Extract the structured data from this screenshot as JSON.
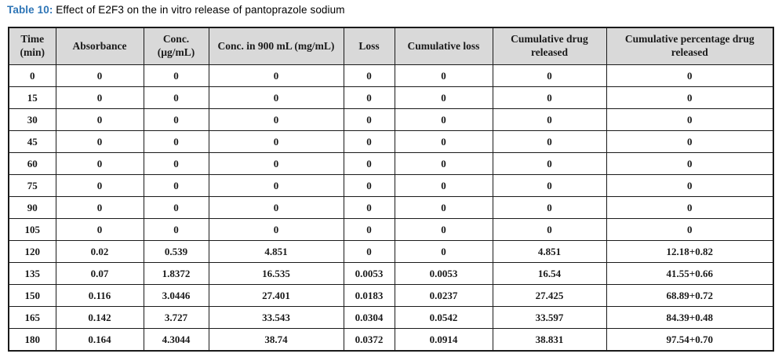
{
  "title": {
    "label": "Table 10:",
    "text": "Effect of E2F3 on the in vitro release of pantoprazole sodium"
  },
  "colors": {
    "caption_label_blue": "#2e75b6",
    "header_background": "#d9d9d9",
    "table_border": "#1a1a1a",
    "text": "#1a1a1a"
  },
  "table": {
    "columns": [
      "Time (min)",
      "Absorbance",
      "Conc. (µg/mL)",
      "Conc. in 900 mL (mg/mL)",
      "Loss",
      "Cumulative loss",
      "Cumulative drug released",
      "Cumulative percentage drug released"
    ],
    "rows": [
      [
        "0",
        "0",
        "0",
        "0",
        "0",
        "0",
        "0",
        "0"
      ],
      [
        "15",
        "0",
        "0",
        "0",
        "0",
        "0",
        "0",
        "0"
      ],
      [
        "30",
        "0",
        "0",
        "0",
        "0",
        "0",
        "0",
        "0"
      ],
      [
        "45",
        "0",
        "0",
        "0",
        "0",
        "0",
        "0",
        "0"
      ],
      [
        "60",
        "0",
        "0",
        "0",
        "0",
        "0",
        "0",
        "0"
      ],
      [
        "75",
        "0",
        "0",
        "0",
        "0",
        "0",
        "0",
        "0"
      ],
      [
        "90",
        "0",
        "0",
        "0",
        "0",
        "0",
        "0",
        "0"
      ],
      [
        "105",
        "0",
        "0",
        "0",
        "0",
        "0",
        "0",
        "0"
      ],
      [
        "120",
        "0.02",
        "0.539",
        "4.851",
        "0",
        "0",
        "4.851",
        "12.18+0.82"
      ],
      [
        "135",
        "0.07",
        "1.8372",
        "16.535",
        "0.0053",
        "0.0053",
        "16.54",
        "41.55+0.66"
      ],
      [
        "150",
        "0.116",
        "3.0446",
        "27.401",
        "0.0183",
        "0.0237",
        "27.425",
        "68.89+0.72"
      ],
      [
        "165",
        "0.142",
        "3.727",
        "33.543",
        "0.0304",
        "0.0542",
        "33.597",
        "84.39+0.48"
      ],
      [
        "180",
        "0.164",
        "4.3044",
        "38.74",
        "0.0372",
        "0.0914",
        "38.831",
        "97.54+0.70"
      ]
    ]
  },
  "chart_data": {
    "type": "table",
    "title": "Table 10: Effect of E2F3 on the in vitro release of pantoprazole sodium",
    "columns": [
      "Time (min)",
      "Absorbance",
      "Conc. (µg/mL)",
      "Conc. in 900 mL (mg/mL)",
      "Loss",
      "Cumulative loss",
      "Cumulative drug released",
      "Cumulative percentage drug released"
    ],
    "rows": [
      [
        "0",
        "0",
        "0",
        "0",
        "0",
        "0",
        "0",
        "0"
      ],
      [
        "15",
        "0",
        "0",
        "0",
        "0",
        "0",
        "0",
        "0"
      ],
      [
        "30",
        "0",
        "0",
        "0",
        "0",
        "0",
        "0",
        "0"
      ],
      [
        "45",
        "0",
        "0",
        "0",
        "0",
        "0",
        "0",
        "0"
      ],
      [
        "60",
        "0",
        "0",
        "0",
        "0",
        "0",
        "0",
        "0"
      ],
      [
        "75",
        "0",
        "0",
        "0",
        "0",
        "0",
        "0",
        "0"
      ],
      [
        "90",
        "0",
        "0",
        "0",
        "0",
        "0",
        "0",
        "0"
      ],
      [
        "105",
        "0",
        "0",
        "0",
        "0",
        "0",
        "0",
        "0"
      ],
      [
        "120",
        "0.02",
        "0.539",
        "4.851",
        "0",
        "0",
        "4.851",
        "12.18+0.82"
      ],
      [
        "135",
        "0.07",
        "1.8372",
        "16.535",
        "0.0053",
        "0.0053",
        "16.54",
        "41.55+0.66"
      ],
      [
        "150",
        "0.116",
        "3.0446",
        "27.401",
        "0.0183",
        "0.0237",
        "27.425",
        "68.89+0.72"
      ],
      [
        "165",
        "0.142",
        "3.727",
        "33.543",
        "0.0304",
        "0.0542",
        "33.597",
        "84.39+0.48"
      ],
      [
        "180",
        "0.164",
        "4.3044",
        "38.74",
        "0.0372",
        "0.0914",
        "38.831",
        "97.54+0.70"
      ]
    ]
  }
}
